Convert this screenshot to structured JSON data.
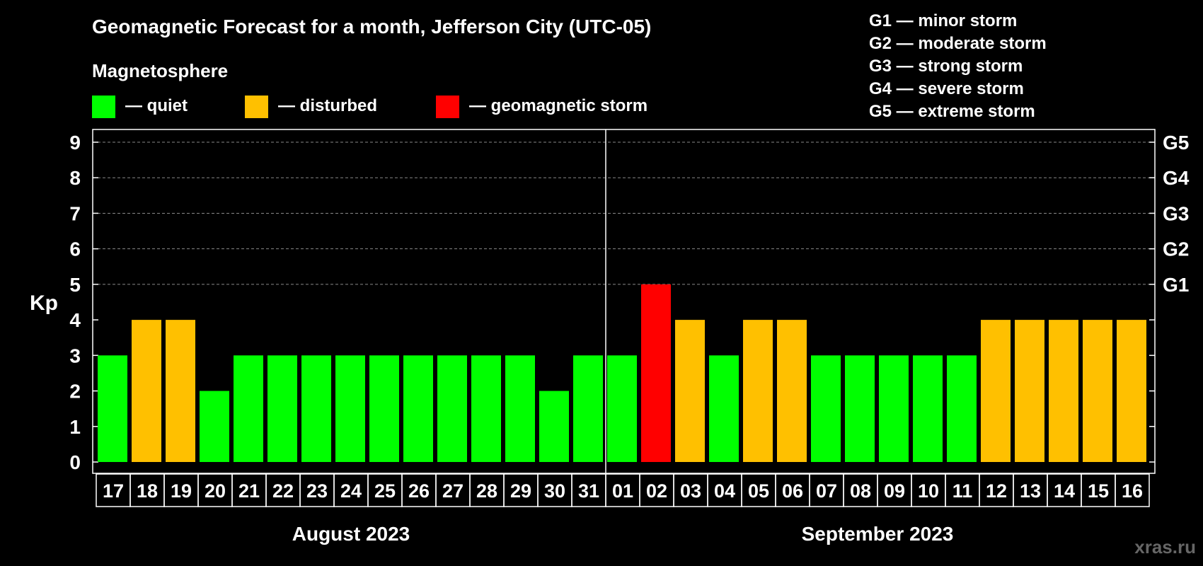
{
  "chart_data": {
    "type": "bar",
    "title": "Geomagnetic Forecast for a month, Jefferson City (UTC-05)",
    "ylabel": "Kp",
    "ylim": [
      0,
      9
    ],
    "yticks": [
      "0",
      "1",
      "2",
      "3",
      "4",
      "5",
      "6",
      "7",
      "8",
      "9"
    ],
    "right_axis_labels": [
      {
        "kp": 5,
        "label": "G1"
      },
      {
        "kp": 6,
        "label": "G2"
      },
      {
        "kp": 7,
        "label": "G3"
      },
      {
        "kp": 8,
        "label": "G4"
      },
      {
        "kp": 9,
        "label": "G5"
      }
    ],
    "legend": {
      "title": "Magnetosphere",
      "items": [
        {
          "label": "— quiet",
          "color": "#00ff00"
        },
        {
          "label": "— disturbed",
          "color": "#ffc000"
        },
        {
          "label": "— geomagnetic storm",
          "color": "#ff0000"
        }
      ]
    },
    "storm_scale": [
      "G1 — minor storm",
      "G2 — moderate storm",
      "G3 — strong storm",
      "G4 — severe storm",
      "G5 — extreme storm"
    ],
    "months": [
      {
        "label": "August 2023",
        "first_index": 0,
        "last_index": 14
      },
      {
        "label": "September 2023",
        "first_index": 15,
        "last_index": 30
      }
    ],
    "month_divider_after_index": 14,
    "categories": [
      "17",
      "18",
      "19",
      "20",
      "21",
      "22",
      "23",
      "24",
      "25",
      "26",
      "27",
      "28",
      "29",
      "30",
      "31",
      "01",
      "02",
      "03",
      "04",
      "05",
      "06",
      "07",
      "08",
      "09",
      "10",
      "11",
      "12",
      "13",
      "14",
      "15",
      "16"
    ],
    "values": [
      3,
      4,
      4,
      2,
      3,
      3,
      3,
      3,
      3,
      3,
      3,
      3,
      3,
      2,
      3,
      3,
      5,
      4,
      3,
      4,
      4,
      3,
      3,
      3,
      3,
      3,
      4,
      4,
      4,
      4,
      4
    ],
    "colors": {
      "quiet": "#00ff00",
      "disturbed": "#ffc000",
      "storm": "#ff0000"
    },
    "watermark": "xras.ru"
  }
}
